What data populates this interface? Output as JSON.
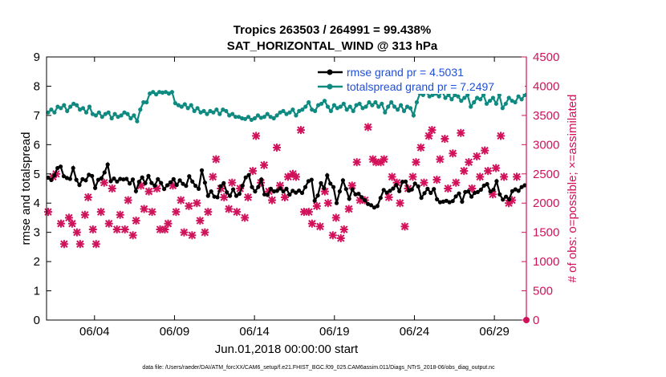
{
  "chart_data": {
    "type": "line",
    "title": "Tropics 263503 / 264991 = 99.438%",
    "subtitle": "SAT_HORIZONTAL_WIND @ 313 hPa",
    "xlabel": "Jun.01,2018 00:00:00 start",
    "ylabel_left": "rmse and totalspread",
    "ylabel_right": "# of obs: o=possible; ×=assimilated",
    "footnote": "data file: /Users/raeder/DAI/ATM_forcXX/CAM6_setup/f.e21.FHIST_BGC.f09_025.CAM6assim.011/Diags_NTrS_2018-06/obs_diag_output.nc",
    "x_tick_labels": [
      "06/04",
      "06/09",
      "06/14",
      "06/19",
      "06/24",
      "06/29"
    ],
    "x_tick_days": [
      4,
      9,
      14,
      19,
      24,
      29
    ],
    "xlim_days": [
      1.0,
      31.0
    ],
    "ylim_left": [
      0,
      9
    ],
    "ylim_right": [
      0,
      4500
    ],
    "y_ticks_left": [
      "0",
      "1",
      "2",
      "3",
      "4",
      "5",
      "6",
      "7",
      "8",
      "9"
    ],
    "y_ticks_right": [
      "0",
      "500",
      "1000",
      "1500",
      "2000",
      "2500",
      "3000",
      "3500",
      "4000",
      "4500"
    ],
    "colors": {
      "rmse": "#000000",
      "spread": "#0e8a80",
      "obs": "#d1115a",
      "legend_text": "#1f4fd6",
      "axis": "#000000"
    },
    "legend": [
      {
        "label": "rmse grand pr = 4.5031",
        "series": "rmse"
      },
      {
        "label": "totalspread grand pr = 7.2497",
        "series": "spread"
      }
    ],
    "series": [
      {
        "name": "rmse",
        "axis": "left",
        "marker": "o",
        "values": [
          4.87,
          4.79,
          4.95,
          5.2,
          5.25,
          4.92,
          4.86,
          4.83,
          5.2,
          4.8,
          4.62,
          4.82,
          4.78,
          4.97,
          4.93,
          4.52,
          4.8,
          4.85,
          5.05,
          5.32,
          4.75,
          4.84,
          4.74,
          4.83,
          4.81,
          4.83,
          4.67,
          4.81,
          4.41,
          4.73,
          4.88,
          4.68,
          4.93,
          4.69,
          4.6,
          4.82,
          4.69,
          4.48,
          4.61,
          4.71,
          4.82,
          4.62,
          4.78,
          4.66,
          4.59,
          4.92,
          4.74,
          4.59,
          4.49,
          5.12,
          4.7,
          4.25,
          4.4,
          4.22,
          4.2,
          4.58,
          4.68,
          4.37,
          4.25,
          4.47,
          4.25,
          4.32,
          4.6,
          4.88,
          4.96,
          4.55,
          4.4,
          4.55,
          4.81,
          4.3,
          4.28,
          4.49,
          4.4,
          4.42,
          4.5,
          4.4,
          4.49,
          4.29,
          4.42,
          4.36,
          4.43,
          4.35,
          4.55,
          4.75,
          4.8,
          4.08,
          4.26,
          4.68,
          4.51,
          4.95,
          4.67,
          4.55,
          4.0,
          4.4,
          4.78,
          4.48,
          4.15,
          4.47,
          4.3,
          4.32,
          4.2,
          4.1,
          3.97,
          3.93,
          3.85,
          3.9,
          4.18,
          4.45,
          4.36,
          4.42,
          4.5,
          4.62,
          4.41,
          4.73,
          4.74,
          4.43,
          4.47,
          4.67,
          4.57,
          4.18,
          4.34,
          4.49,
          4.35,
          4.48,
          4.13,
          4.03,
          4.05,
          4.08,
          4.03,
          4.07,
          4.23,
          4.33,
          4.05,
          4.38,
          4.4,
          4.22,
          4.35,
          4.38,
          4.46,
          4.6,
          4.65,
          4.4,
          4.46,
          4.75,
          4.3,
          4.12,
          4.22,
          4.13,
          4.41,
          4.47,
          4.42,
          4.55,
          4.61
        ]
      },
      {
        "name": "totalspread",
        "axis": "left",
        "marker": "o",
        "values": [
          7.1,
          7.2,
          7.1,
          7.3,
          7.25,
          7.35,
          7.15,
          7.3,
          7.4,
          7.35,
          7.2,
          7.25,
          7.1,
          7.3,
          7.05,
          7.0,
          7.1,
          6.95,
          7.05,
          7.1,
          6.9,
          7.05,
          6.95,
          7.0,
          7.1,
          7.05,
          6.9,
          7.0,
          6.8,
          7.2,
          7.45,
          7.45,
          7.75,
          7.8,
          7.72,
          7.8,
          7.78,
          7.8,
          7.75,
          7.8,
          7.42,
          7.35,
          7.3,
          7.38,
          7.25,
          7.35,
          7.15,
          7.25,
          7.1,
          7.15,
          7.05,
          7.15,
          7.1,
          7.2,
          7.05,
          7.2,
          7.15,
          7.0,
          7.05,
          6.95,
          6.95,
          6.9,
          6.88,
          6.95,
          6.85,
          6.9,
          7.0,
          6.92,
          6.95,
          7.05,
          6.95,
          6.9,
          7.0,
          7.1,
          7.15,
          7.05,
          7.1,
          7.2,
          7.0,
          7.15,
          7.2,
          7.3,
          7.45,
          7.2,
          7.15,
          7.35,
          7.4,
          7.5,
          7.3,
          7.15,
          7.35,
          7.25,
          7.3,
          7.4,
          7.2,
          7.3,
          7.15,
          7.35,
          7.4,
          7.25,
          7.3,
          7.45,
          7.35,
          7.45,
          7.3,
          7.4,
          7.1,
          7.3,
          7.45,
          7.3,
          7.2,
          7.35,
          7.15,
          7.3,
          7.25,
          7.0,
          7.45,
          7.75,
          7.7,
          7.8,
          7.65,
          7.7,
          7.75,
          7.65,
          7.82,
          7.6,
          7.7,
          7.55,
          7.7,
          7.65,
          7.5,
          7.6,
          7.7,
          7.3,
          7.45,
          7.6,
          7.55,
          7.7,
          7.4,
          7.5,
          7.6,
          7.4,
          7.7,
          7.25,
          7.4,
          7.6,
          7.5,
          7.45,
          7.65,
          7.55,
          7.7
        ]
      },
      {
        "name": "obs_possible",
        "axis": "right",
        "marker": "o",
        "values": []
      },
      {
        "name": "obs_assimilated",
        "axis": "right",
        "marker": "x",
        "points": [
          [
            1.1,
            1850
          ],
          [
            1.4,
            2450
          ],
          [
            1.6,
            2500
          ],
          [
            1.9,
            1650
          ],
          [
            2.1,
            1300
          ],
          [
            2.4,
            1750
          ],
          [
            2.6,
            1650
          ],
          [
            2.9,
            1500
          ],
          [
            3.1,
            1300
          ],
          [
            3.4,
            1800
          ],
          [
            3.6,
            2100
          ],
          [
            3.9,
            1550
          ],
          [
            4.1,
            1300
          ],
          [
            4.4,
            1850
          ],
          [
            4.6,
            2350
          ],
          [
            4.9,
            1650
          ],
          [
            5.1,
            2250
          ],
          [
            5.4,
            1550
          ],
          [
            5.6,
            1800
          ],
          [
            5.9,
            1550
          ],
          [
            6.1,
            2050
          ],
          [
            6.4,
            1450
          ],
          [
            6.6,
            1700
          ],
          [
            6.9,
            2300
          ],
          [
            7.1,
            1900
          ],
          [
            7.4,
            2200
          ],
          [
            7.6,
            1850
          ],
          [
            7.9,
            2250
          ],
          [
            8.1,
            1550
          ],
          [
            8.4,
            1550
          ],
          [
            8.6,
            1650
          ],
          [
            8.9,
            2300
          ],
          [
            9.1,
            1850
          ],
          [
            9.4,
            2050
          ],
          [
            9.6,
            1500
          ],
          [
            9.9,
            1950
          ],
          [
            10.1,
            1450
          ],
          [
            10.4,
            2000
          ],
          [
            10.6,
            1700
          ],
          [
            10.9,
            1500
          ],
          [
            11.1,
            1850
          ],
          [
            11.4,
            2450
          ],
          [
            11.6,
            2750
          ],
          [
            11.9,
            2250
          ],
          [
            12.1,
            2100
          ],
          [
            12.4,
            1900
          ],
          [
            12.6,
            2350
          ],
          [
            12.9,
            1850
          ],
          [
            13.1,
            2250
          ],
          [
            13.4,
            1750
          ],
          [
            13.6,
            2100
          ],
          [
            13.9,
            2550
          ],
          [
            14.1,
            3150
          ],
          [
            14.4,
            2350
          ],
          [
            14.6,
            2650
          ],
          [
            14.9,
            2200
          ],
          [
            15.1,
            2050
          ],
          [
            15.4,
            2950
          ],
          [
            15.6,
            2300
          ],
          [
            15.9,
            2100
          ],
          [
            16.1,
            2450
          ],
          [
            16.4,
            2500
          ],
          [
            16.6,
            2450
          ],
          [
            16.9,
            3250
          ],
          [
            17.1,
            1850
          ],
          [
            17.4,
            1850
          ],
          [
            17.6,
            1650
          ],
          [
            17.9,
            1950
          ],
          [
            18.1,
            1600
          ],
          [
            18.4,
            2200
          ],
          [
            18.6,
            2000
          ],
          [
            18.9,
            1450
          ],
          [
            19.1,
            1750
          ],
          [
            19.4,
            1400
          ],
          [
            19.6,
            1550
          ],
          [
            19.9,
            1900
          ],
          [
            20.1,
            2300
          ],
          [
            20.4,
            2700
          ],
          [
            20.6,
            2050
          ],
          [
            20.9,
            2050
          ],
          [
            21.1,
            3300
          ],
          [
            21.4,
            2750
          ],
          [
            21.6,
            2700
          ],
          [
            21.9,
            2700
          ],
          [
            22.1,
            2750
          ],
          [
            22.4,
            2100
          ],
          [
            22.6,
            2450
          ],
          [
            22.9,
            2350
          ],
          [
            23.1,
            2000
          ],
          [
            23.4,
            1600
          ],
          [
            23.6,
            2250
          ],
          [
            23.9,
            2450
          ],
          [
            24.1,
            2700
          ],
          [
            24.4,
            2950
          ],
          [
            24.6,
            2350
          ],
          [
            24.9,
            3150
          ],
          [
            25.1,
            3250
          ],
          [
            25.4,
            2400
          ],
          [
            25.6,
            2750
          ],
          [
            25.9,
            3100
          ],
          [
            26.1,
            2250
          ],
          [
            26.4,
            2850
          ],
          [
            26.6,
            2350
          ],
          [
            26.9,
            3200
          ],
          [
            27.1,
            2550
          ],
          [
            27.4,
            2700
          ],
          [
            27.6,
            2250
          ],
          [
            27.9,
            2800
          ],
          [
            28.1,
            2450
          ],
          [
            28.4,
            2900
          ],
          [
            28.6,
            2550
          ],
          [
            28.9,
            2150
          ],
          [
            29.1,
            2600
          ],
          [
            29.4,
            3150
          ],
          [
            29.6,
            2450
          ],
          [
            29.9,
            2000
          ],
          [
            30.1,
            2050
          ],
          [
            30.4,
            2450
          ]
        ]
      }
    ]
  }
}
